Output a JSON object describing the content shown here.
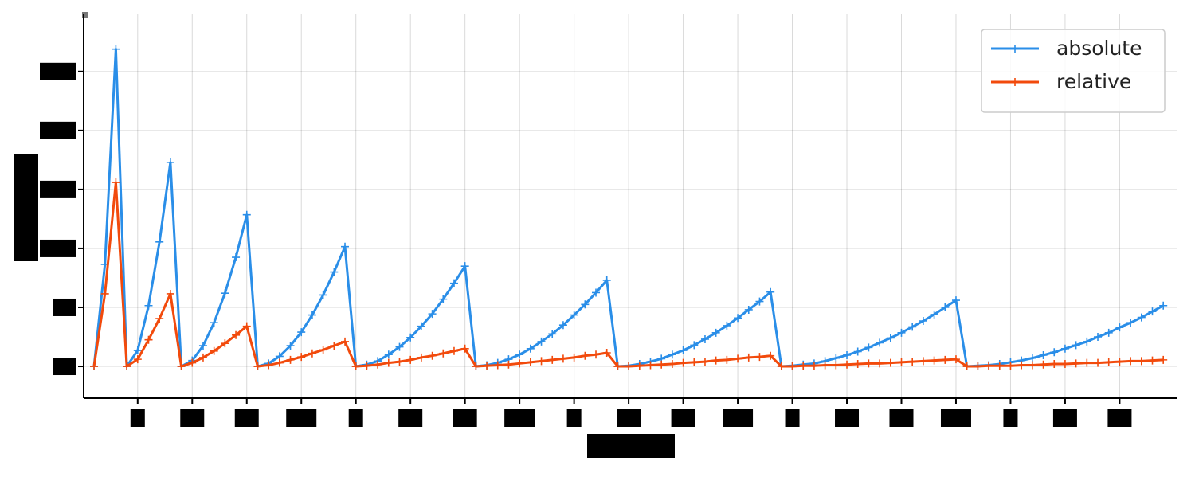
{
  "chart_data": {
    "type": "line",
    "x": [
      0,
      1,
      2,
      3,
      4,
      5,
      6,
      7,
      8,
      9,
      10,
      11,
      12,
      13,
      14,
      15,
      16,
      17,
      18,
      19,
      20,
      21,
      22,
      23,
      24,
      25,
      26,
      27,
      28,
      29,
      30,
      31,
      32,
      33,
      34,
      35,
      36,
      37,
      38,
      39,
      40,
      41,
      42,
      43,
      44,
      45,
      46,
      47,
      48,
      49,
      50,
      51,
      52,
      53,
      54,
      55,
      56,
      57,
      58,
      59,
      60,
      61,
      62,
      63,
      64,
      65,
      66,
      67,
      68,
      69,
      70,
      71,
      72,
      73,
      74,
      75,
      76,
      77,
      78,
      79,
      80,
      81,
      82,
      83,
      84,
      85,
      86,
      87,
      88,
      89,
      90,
      91,
      92,
      93,
      94,
      95,
      96,
      97,
      98
    ],
    "series": [
      {
        "name": "absolute",
        "color": "#2a8ee8",
        "values": [
          0,
          1.73,
          5.38,
          0,
          0.27,
          1.03,
          2.11,
          3.46,
          0,
          0.1,
          0.35,
          0.74,
          1.24,
          1.85,
          2.57,
          0,
          0.05,
          0.17,
          0.35,
          0.58,
          0.87,
          1.21,
          1.6,
          2.03,
          0,
          0.03,
          0.09,
          0.2,
          0.33,
          0.49,
          0.68,
          0.89,
          1.14,
          1.41,
          1.7,
          0,
          0.02,
          0.06,
          0.12,
          0.2,
          0.3,
          0.42,
          0.55,
          0.7,
          0.87,
          1.05,
          1.25,
          1.46,
          0,
          0.01,
          0.04,
          0.08,
          0.13,
          0.2,
          0.27,
          0.36,
          0.46,
          0.57,
          0.69,
          0.82,
          0.96,
          1.1,
          1.26,
          0,
          0.01,
          0.03,
          0.05,
          0.09,
          0.14,
          0.19,
          0.25,
          0.32,
          0.4,
          0.48,
          0.57,
          0.67,
          0.77,
          0.88,
          1.0,
          1.12,
          0,
          0.01,
          0.02,
          0.04,
          0.07,
          0.1,
          0.14,
          0.19,
          0.24,
          0.3,
          0.36,
          0.42,
          0.5,
          0.57,
          0.66,
          0.74,
          0.83,
          0.93,
          1.03
        ]
      },
      {
        "name": "relative",
        "color": "#f24a0c",
        "values": [
          0,
          1.23,
          3.12,
          0,
          0.12,
          0.45,
          0.81,
          1.23,
          0,
          0.06,
          0.15,
          0.26,
          0.39,
          0.53,
          0.68,
          0,
          0.02,
          0.06,
          0.11,
          0.16,
          0.22,
          0.28,
          0.35,
          0.42,
          0,
          0.01,
          0.03,
          0.06,
          0.08,
          0.11,
          0.15,
          0.18,
          0.22,
          0.26,
          0.3,
          0,
          0.01,
          0.02,
          0.03,
          0.05,
          0.07,
          0.09,
          0.11,
          0.13,
          0.15,
          0.18,
          0.2,
          0.23,
          0,
          0.0,
          0.01,
          0.02,
          0.03,
          0.04,
          0.06,
          0.07,
          0.08,
          0.1,
          0.11,
          0.13,
          0.15,
          0.16,
          0.18,
          0,
          0.0,
          0.01,
          0.01,
          0.02,
          0.02,
          0.03,
          0.04,
          0.05,
          0.05,
          0.06,
          0.07,
          0.08,
          0.09,
          0.1,
          0.11,
          0.12,
          0,
          0.0,
          0.01,
          0.01,
          0.01,
          0.02,
          0.02,
          0.03,
          0.04,
          0.04,
          0.05,
          0.06,
          0.06,
          0.07,
          0.08,
          0.09,
          0.09,
          0.1,
          0.11
        ]
      }
    ],
    "xlim": [
      -0.95,
      99.3
    ],
    "ylim": [
      -0.54,
      5.97
    ],
    "xticks": [
      4,
      9,
      14,
      19,
      24,
      29,
      34,
      39,
      44,
      49,
      54,
      59,
      64,
      69,
      74,
      79,
      84,
      89,
      94
    ],
    "yticks": [
      0,
      1,
      2,
      3,
      4,
      5
    ],
    "grid": true,
    "legend": "upper right"
  }
}
